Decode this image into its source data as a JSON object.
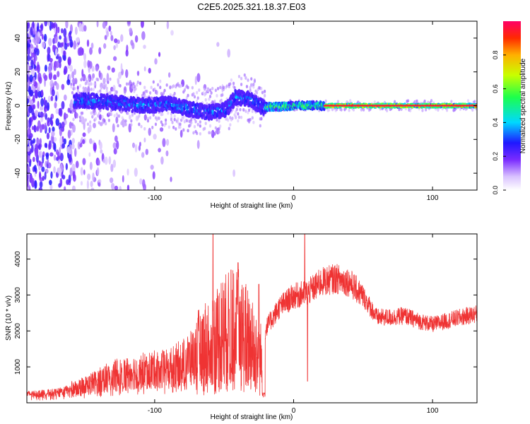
{
  "page": {
    "title": "C2E5.2025.321.18.37.E03"
  },
  "colors": {
    "snr_line": "#ef3333",
    "axis": "#000000",
    "background": "#ffffff"
  },
  "chart_data": [
    {
      "type": "heatmap",
      "xlabel": "Height of straight line (km)",
      "ylabel": "Frequency (Hz)",
      "xlim": [
        -192,
        132
      ],
      "ylim": [
        -50,
        50
      ],
      "x_ticks": [
        -100,
        0,
        100
      ],
      "x_tick_labels": [
        "-100",
        "0",
        "100"
      ],
      "y_ticks": [
        -40,
        -20,
        0,
        20,
        40
      ],
      "y_tick_labels": [
        "-40",
        "-20",
        "0",
        "20",
        "40"
      ],
      "colorbar": {
        "label": "Normalized spectral amplitude",
        "range": [
          0,
          1
        ],
        "ticks": [
          0.0,
          0.2,
          0.4,
          0.6,
          0.8
        ],
        "tick_labels": [
          "0.0",
          "0.2",
          "0.4",
          "0.6",
          "0.8"
        ]
      },
      "ridge_description_points": [
        {
          "x": -150,
          "freq": 3
        },
        {
          "x": -130,
          "freq": 2
        },
        {
          "x": -110,
          "freq": 0
        },
        {
          "x": -90,
          "freq": 1
        },
        {
          "x": -75,
          "freq": -2
        },
        {
          "x": -60,
          "freq": -4
        },
        {
          "x": -48,
          "freq": -2
        },
        {
          "x": -42,
          "freq": 5
        },
        {
          "x": -32,
          "freq": 4
        },
        {
          "x": -22,
          "freq": -1
        },
        {
          "x": 0,
          "freq": 0
        },
        {
          "x": 20,
          "freq": 0
        },
        {
          "x": 132,
          "freq": 0
        }
      ]
    },
    {
      "type": "line",
      "xlabel": "Height of straight line (km)",
      "ylabel": "SNR (10 * v/v)",
      "xlim": [
        -192,
        132
      ],
      "ylim": [
        0,
        4700
      ],
      "x_ticks": [
        -100,
        0,
        100
      ],
      "x_tick_labels": [
        "-100",
        "0",
        "100"
      ],
      "y_ticks": [
        1000,
        2000,
        3000,
        4000
      ],
      "y_tick_labels": [
        "1000",
        "2000",
        "3000",
        "4000"
      ],
      "series": [
        {
          "name": "SNR",
          "envelope_x": [
            -192,
            -170,
            -150,
            -130,
            -110,
            -90,
            -75,
            -60,
            -50,
            -40,
            -30,
            -22,
            -20,
            -15,
            -10,
            0,
            10,
            20,
            30,
            40,
            50,
            60,
            70,
            80,
            90,
            100,
            110,
            120,
            132
          ],
          "envelope_y": [
            250,
            300,
            500,
            800,
            950,
            1000,
            1300,
            1800,
            2100,
            2200,
            1800,
            1200,
            2100,
            2400,
            2700,
            3000,
            3100,
            3400,
            3500,
            3400,
            3000,
            2400,
            2400,
            2450,
            2300,
            2200,
            2300,
            2400,
            2500
          ],
          "spikes_x": [
            -58,
            -45,
            -40,
            -25,
            8,
            10
          ],
          "spikes_y": [
            4700,
            3700,
            3900,
            3300,
            4700,
            600
          ]
        }
      ]
    }
  ]
}
